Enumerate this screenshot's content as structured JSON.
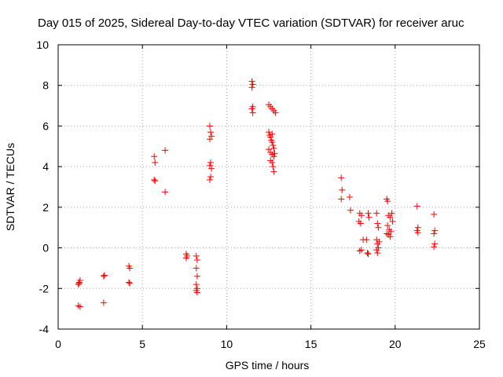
{
  "chart_data": {
    "type": "scatter",
    "title": "Day 015 of 2025, Sidereal Day-to-day VTEC variation (SDTVAR) for receiver aruc",
    "xlabel": "GPS time / hours",
    "ylabel": "SDTVAR / TECUs",
    "xlim": [
      0,
      25
    ],
    "ylim": [
      -4,
      10
    ],
    "xticks": [
      0,
      5,
      10,
      15,
      20,
      25
    ],
    "yticks": [
      -4,
      -2,
      0,
      2,
      4,
      6,
      8,
      10
    ],
    "grid": true,
    "marker": "plus",
    "color": "#ff0000",
    "series": [
      {
        "name": "SDTVAR",
        "points": [
          [
            1.2,
            -1.8
          ],
          [
            1.25,
            -1.7
          ],
          [
            1.3,
            -1.6
          ],
          [
            1.2,
            -2.85
          ],
          [
            1.3,
            -2.9
          ],
          [
            1.25,
            -1.75
          ],
          [
            2.7,
            -1.4
          ],
          [
            2.75,
            -1.35
          ],
          [
            2.7,
            -2.7
          ],
          [
            4.2,
            -0.9
          ],
          [
            4.25,
            -1.0
          ],
          [
            4.2,
            -1.7
          ],
          [
            4.25,
            -1.75
          ],
          [
            5.7,
            4.5
          ],
          [
            5.75,
            4.2
          ],
          [
            5.7,
            3.35
          ],
          [
            5.75,
            3.3
          ],
          [
            6.35,
            4.8
          ],
          [
            6.35,
            2.75
          ],
          [
            7.6,
            -0.3
          ],
          [
            7.65,
            -0.4
          ],
          [
            7.6,
            -0.5
          ],
          [
            8.2,
            -0.4
          ],
          [
            8.25,
            -0.6
          ],
          [
            8.2,
            -1.0
          ],
          [
            8.25,
            -1.4
          ],
          [
            8.2,
            -1.8
          ],
          [
            8.25,
            -2.0
          ],
          [
            8.2,
            -2.1
          ],
          [
            8.25,
            -2.2
          ],
          [
            9.0,
            6.0
          ],
          [
            9.05,
            5.7
          ],
          [
            9.1,
            5.5
          ],
          [
            9.0,
            5.35
          ],
          [
            9.05,
            4.2
          ],
          [
            9.0,
            4.05
          ],
          [
            9.1,
            3.9
          ],
          [
            9.05,
            3.5
          ],
          [
            9.0,
            3.35
          ],
          [
            11.5,
            8.2
          ],
          [
            11.55,
            8.05
          ],
          [
            11.5,
            7.9
          ],
          [
            11.55,
            6.95
          ],
          [
            11.5,
            6.85
          ],
          [
            11.55,
            6.65
          ],
          [
            12.5,
            7.05
          ],
          [
            12.6,
            6.95
          ],
          [
            12.7,
            6.85
          ],
          [
            12.8,
            6.75
          ],
          [
            12.9,
            6.65
          ],
          [
            12.5,
            5.7
          ],
          [
            12.55,
            5.55
          ],
          [
            12.6,
            5.45
          ],
          [
            12.65,
            5.3
          ],
          [
            12.7,
            5.2
          ],
          [
            12.75,
            5.05
          ],
          [
            12.8,
            4.9
          ],
          [
            12.5,
            4.85
          ],
          [
            12.6,
            4.7
          ],
          [
            12.7,
            4.6
          ],
          [
            12.8,
            4.5
          ],
          [
            12.6,
            4.3
          ],
          [
            12.7,
            4.2
          ],
          [
            12.75,
            4.0
          ],
          [
            12.8,
            3.75
          ],
          [
            12.7,
            5.6
          ],
          [
            12.85,
            4.65
          ],
          [
            16.8,
            3.45
          ],
          [
            16.85,
            2.85
          ],
          [
            16.8,
            2.4
          ],
          [
            17.3,
            2.5
          ],
          [
            17.35,
            1.85
          ],
          [
            17.9,
            1.7
          ],
          [
            18.0,
            1.6
          ],
          [
            17.85,
            1.3
          ],
          [
            17.95,
            1.2
          ],
          [
            18.1,
            0.4
          ],
          [
            18.0,
            -0.1
          ],
          [
            17.9,
            -0.15
          ],
          [
            18.4,
            1.7
          ],
          [
            18.45,
            1.5
          ],
          [
            18.3,
            0.4
          ],
          [
            18.4,
            -0.3
          ],
          [
            18.35,
            -0.25
          ],
          [
            18.9,
            1.7
          ],
          [
            18.95,
            1.2
          ],
          [
            19.0,
            1.0
          ],
          [
            18.9,
            0.4
          ],
          [
            18.95,
            0.2
          ],
          [
            19.0,
            0.0
          ],
          [
            18.9,
            -0.1
          ],
          [
            18.95,
            -0.25
          ],
          [
            19.05,
            0.3
          ],
          [
            19.5,
            2.4
          ],
          [
            19.55,
            2.3
          ],
          [
            19.6,
            1.6
          ],
          [
            19.7,
            1.5
          ],
          [
            19.8,
            1.7
          ],
          [
            19.55,
            1.1
          ],
          [
            19.65,
            0.9
          ],
          [
            19.75,
            0.8
          ],
          [
            19.6,
            0.65
          ],
          [
            19.7,
            0.55
          ],
          [
            19.85,
            1.3
          ],
          [
            19.5,
            0.7
          ],
          [
            21.3,
            2.05
          ],
          [
            21.35,
            1.0
          ],
          [
            21.3,
            0.85
          ],
          [
            21.35,
            0.75
          ],
          [
            22.3,
            1.65
          ],
          [
            22.35,
            0.85
          ],
          [
            22.3,
            0.7
          ],
          [
            22.35,
            0.2
          ],
          [
            22.3,
            0.05
          ]
        ]
      }
    ]
  }
}
